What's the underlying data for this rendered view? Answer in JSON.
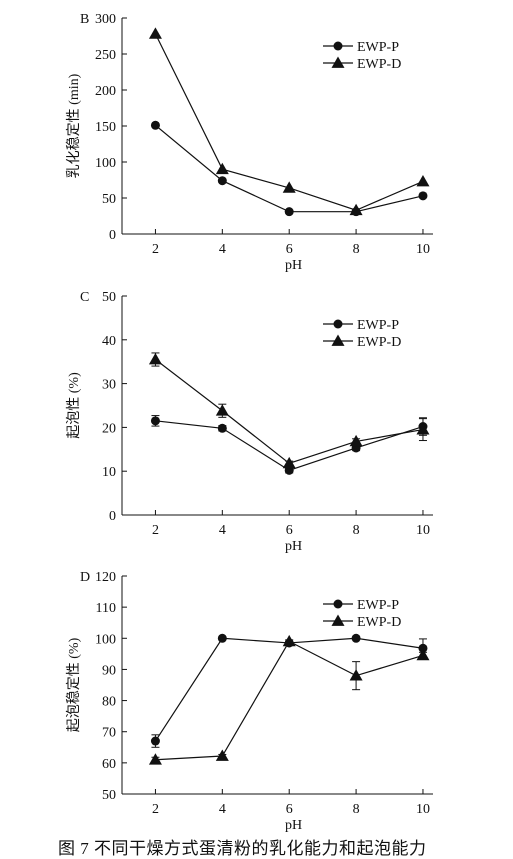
{
  "caption": "图 7   不同干燥方式蛋清粉的乳化能力和起泡能力",
  "chart_data": [
    {
      "type": "line",
      "panel_label": "B",
      "xlabel": "pH",
      "ylabel": "乳化稳定性 (min)",
      "x": [
        2,
        4,
        6,
        8,
        10
      ],
      "xticks": [
        "2",
        "4",
        "6",
        "8",
        "10"
      ],
      "ylim": [
        0,
        300
      ],
      "yticks": [
        0,
        50,
        100,
        150,
        200,
        250,
        300
      ],
      "grid": false,
      "legend_position": "top-right",
      "series": [
        {
          "name": "EWP-P",
          "marker": "circle",
          "values": [
            151,
            74,
            31,
            31,
            53
          ],
          "errors": [
            0,
            0,
            0,
            0,
            0
          ]
        },
        {
          "name": "EWP-D",
          "marker": "triangle",
          "values": [
            278,
            90,
            64,
            33,
            73
          ],
          "errors": [
            0,
            0,
            0,
            0,
            0
          ]
        }
      ]
    },
    {
      "type": "line",
      "panel_label": "C",
      "xlabel": "pH",
      "ylabel": "起泡性 (%)",
      "x": [
        2,
        4,
        6,
        8,
        10
      ],
      "xticks": [
        "2",
        "4",
        "6",
        "8",
        "10"
      ],
      "ylim": [
        0,
        50
      ],
      "yticks": [
        0,
        10,
        20,
        30,
        40,
        50
      ],
      "grid": false,
      "legend_position": "top-right",
      "series": [
        {
          "name": "EWP-P",
          "marker": "circle",
          "values": [
            21.5,
            19.8,
            10.2,
            15.3,
            20.2
          ],
          "errors": [
            1.2,
            0.6,
            0.6,
            0.6,
            2.0
          ]
        },
        {
          "name": "EWP-D",
          "marker": "triangle",
          "values": [
            35.5,
            23.8,
            11.8,
            16.8,
            19.5
          ],
          "errors": [
            1.5,
            1.5,
            0.5,
            0.6,
            2.5
          ]
        }
      ]
    },
    {
      "type": "line",
      "panel_label": "D",
      "xlabel": "pH",
      "ylabel": "起泡稳定性 (%)",
      "x": [
        2,
        4,
        6,
        8,
        10
      ],
      "xticks": [
        "2",
        "4",
        "6",
        "8",
        "10"
      ],
      "ylim": [
        50,
        120
      ],
      "yticks": [
        50,
        60,
        70,
        80,
        90,
        100,
        110,
        120
      ],
      "grid": false,
      "legend_position": "top-right",
      "series": [
        {
          "name": "EWP-P",
          "marker": "circle",
          "values": [
            67,
            100,
            98.5,
            100,
            96.8
          ],
          "errors": [
            2.0,
            0,
            0.5,
            0,
            3.0
          ]
        },
        {
          "name": "EWP-D",
          "marker": "triangle",
          "values": [
            61,
            62.2,
            99,
            88,
            94.5
          ],
          "errors": [
            0.8,
            0.5,
            0.5,
            4.5,
            1.0
          ]
        }
      ]
    }
  ]
}
